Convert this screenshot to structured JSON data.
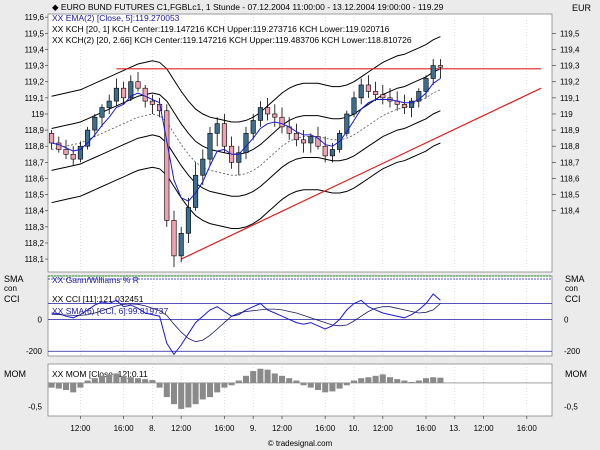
{
  "header": {
    "title": "EURO BUND FUTURES C1,FGBLc1, 1 Stunde - 07.12.2004 11:00:00 - 13.12.2004 19:00:00 - 119.29",
    "currency": "EUR",
    "ema_label": "XX EMA(2) [Close, 5]:119.270053",
    "kch1_label": "XX KCH [20, 1] KCH Center:119.147216 KCH Upper:119.273716 KCH Lower:119.020716",
    "kch2_label": "XX KCH(2) [20, 2.66] KCH Center:119.147216 KCH Upper:119.483706 KCH Lower:118.810726"
  },
  "panels": {
    "sma_label": "SMA",
    "con_label": "con",
    "cci_label": "CCI",
    "cci_legend": "XX CCI [11]:121.032451",
    "sma_legend": "XX SMA(6) [CCI, 6]:99.819737",
    "gann_legend": "XX Gann/Williams % R",
    "mom_label": "MOM",
    "mom_legend": "XX MOM [Close, 12]:0.11"
  },
  "footer": {
    "watermark": "© tradesignal.com"
  },
  "chart_data": [
    {
      "type": "candlestick",
      "title": "EURO BUND FUTURES C1,FGBLc1, 1 Stunde",
      "y_ticks": [
        118.1,
        118.2,
        118.3,
        118.4,
        118.5,
        118.6,
        118.7,
        118.8,
        118.9,
        119.0,
        119.1,
        119.2,
        119.3,
        119.4,
        119.5,
        119.6
      ],
      "y_tick_labels_left": [
        "118,1",
        "118,2",
        "118,3",
        "118,4",
        "118,5",
        "118,6",
        "118,7",
        "118,8",
        "118,9",
        "119",
        "119,1",
        "119,2",
        "119,3",
        "119,4",
        "119,5",
        "119,6"
      ],
      "y_ticks_right": [
        118.4,
        118.5,
        118.6,
        118.7,
        118.8,
        118.9,
        119.0,
        119.1,
        119.2,
        119.3,
        119.4,
        119.5
      ],
      "y_tick_labels_right": [
        "118,4",
        "118,5",
        "118,6",
        "118,7",
        "118,8",
        "118,9",
        "119",
        "119,1",
        "119,2",
        "119,3",
        "119,4",
        "119,5"
      ],
      "ylim": [
        118.02,
        119.62
      ],
      "x_ticks": [
        {
          "i": 4,
          "label": "12:00"
        },
        {
          "i": 10,
          "label": "16:00"
        },
        {
          "i": 14,
          "label": "8."
        },
        {
          "i": 18,
          "label": "12:00"
        },
        {
          "i": 24,
          "label": "16:00"
        },
        {
          "i": 28,
          "label": "9."
        },
        {
          "i": 32,
          "label": "12:00"
        },
        {
          "i": 38,
          "label": "16:00"
        },
        {
          "i": 42,
          "label": "10."
        },
        {
          "i": 46,
          "label": "12:00"
        },
        {
          "i": 52,
          "label": "16:00"
        },
        {
          "i": 56,
          "label": "13."
        },
        {
          "i": 60,
          "label": "12:00"
        },
        {
          "i": 66,
          "label": "16:00"
        }
      ],
      "candles": [
        [
          118.88,
          118.9,
          118.78,
          118.82
        ],
        [
          118.82,
          118.86,
          118.76,
          118.78
        ],
        [
          118.78,
          118.84,
          118.72,
          118.75
        ],
        [
          118.75,
          118.8,
          118.68,
          118.72
        ],
        [
          118.72,
          118.83,
          118.7,
          118.8
        ],
        [
          118.8,
          118.92,
          118.78,
          118.9
        ],
        [
          118.9,
          119.0,
          118.86,
          118.98
        ],
        [
          118.98,
          119.06,
          118.92,
          119.04
        ],
        [
          119.04,
          119.12,
          119.0,
          119.08
        ],
        [
          119.08,
          119.22,
          119.05,
          119.16
        ],
        [
          119.16,
          119.2,
          119.06,
          119.1
        ],
        [
          119.1,
          119.24,
          119.08,
          119.2
        ],
        [
          119.2,
          119.26,
          119.14,
          119.16
        ],
        [
          119.16,
          119.18,
          119.04,
          119.08
        ],
        [
          119.08,
          119.12,
          119.0,
          119.06
        ],
        [
          119.06,
          119.1,
          118.98,
          119.02
        ],
        [
          119.02,
          119.06,
          118.3,
          118.34
        ],
        [
          118.34,
          118.4,
          118.05,
          118.12
        ],
        [
          118.12,
          118.3,
          118.08,
          118.26
        ],
        [
          118.26,
          118.48,
          118.2,
          118.42
        ],
        [
          118.42,
          118.7,
          118.4,
          118.62
        ],
        [
          118.62,
          118.78,
          118.56,
          118.72
        ],
        [
          118.72,
          118.92,
          118.68,
          118.88
        ],
        [
          118.88,
          118.98,
          118.8,
          118.94
        ],
        [
          118.94,
          119.0,
          118.76,
          118.8
        ],
        [
          118.8,
          118.86,
          118.66,
          118.7
        ],
        [
          118.7,
          118.8,
          118.62,
          118.76
        ],
        [
          118.76,
          118.92,
          118.72,
          118.88
        ],
        [
          118.88,
          119.0,
          118.84,
          118.96
        ],
        [
          118.96,
          119.08,
          118.92,
          119.04
        ],
        [
          119.04,
          119.1,
          118.96,
          119.0
        ],
        [
          119.0,
          119.06,
          118.92,
          118.98
        ],
        [
          118.98,
          119.04,
          118.88,
          118.92
        ],
        [
          118.92,
          118.98,
          118.84,
          118.88
        ],
        [
          118.88,
          118.94,
          118.8,
          118.84
        ],
        [
          118.84,
          118.9,
          118.76,
          118.82
        ],
        [
          118.82,
          118.88,
          118.76,
          118.86
        ],
        [
          118.86,
          118.92,
          118.78,
          118.8
        ],
        [
          118.8,
          118.86,
          118.7,
          118.74
        ],
        [
          118.74,
          118.82,
          118.7,
          118.78
        ],
        [
          118.78,
          118.9,
          118.76,
          118.88
        ],
        [
          118.88,
          119.02,
          118.86,
          119.0
        ],
        [
          119.0,
          119.14,
          118.98,
          119.1
        ],
        [
          119.1,
          119.22,
          119.06,
          119.18
        ],
        [
          119.18,
          119.24,
          119.1,
          119.14
        ],
        [
          119.14,
          119.2,
          119.08,
          119.12
        ],
        [
          119.12,
          119.18,
          119.06,
          119.1
        ],
        [
          119.1,
          119.16,
          119.04,
          119.08
        ],
        [
          119.08,
          119.14,
          119.02,
          119.06
        ],
        [
          119.06,
          119.12,
          119.0,
          119.04
        ],
        [
          119.04,
          119.1,
          118.98,
          119.08
        ],
        [
          119.08,
          119.16,
          119.04,
          119.14
        ],
        [
          119.14,
          119.24,
          119.1,
          119.22
        ],
        [
          119.22,
          119.34,
          119.18,
          119.3
        ],
        [
          119.3,
          119.34,
          119.22,
          119.29
        ]
      ],
      "ema": [
        118.82,
        118.81,
        118.79,
        118.77,
        118.78,
        118.82,
        118.87,
        118.93,
        118.98,
        119.04,
        119.06,
        119.11,
        119.13,
        119.11,
        119.09,
        119.07,
        118.83,
        118.59,
        118.48,
        118.46,
        118.51,
        118.58,
        118.68,
        118.77,
        118.78,
        118.75,
        118.75,
        118.8,
        118.85,
        118.91,
        118.94,
        118.95,
        118.94,
        118.92,
        118.89,
        118.87,
        118.87,
        118.85,
        118.81,
        118.8,
        118.83,
        118.89,
        118.96,
        119.03,
        119.07,
        119.09,
        119.09,
        119.09,
        119.08,
        119.07,
        119.07,
        119.09,
        119.13,
        119.19,
        119.22
      ],
      "kch_center": [
        118.78,
        118.79,
        118.8,
        118.81,
        118.82,
        118.84,
        118.86,
        118.88,
        118.9,
        118.92,
        118.94,
        118.96,
        118.98,
        118.99,
        119.0,
        118.99,
        118.95,
        118.88,
        118.81,
        118.75,
        118.7,
        118.67,
        118.65,
        118.64,
        118.63,
        118.62,
        118.62,
        118.63,
        118.65,
        118.68,
        118.72,
        118.76,
        118.8,
        118.83,
        118.85,
        118.86,
        118.86,
        118.86,
        118.85,
        118.84,
        118.84,
        118.85,
        118.87,
        118.9,
        118.93,
        118.96,
        118.99,
        119.01,
        119.03,
        119.04,
        119.06,
        119.08,
        119.1,
        119.13,
        119.15
      ],
      "kch_band_offset": 0.13,
      "kch2_band_offset": 0.33,
      "resistance_line": {
        "from_i": 9,
        "to_i": 68,
        "y": 119.28
      },
      "trend_line": {
        "from_i": 18,
        "from_y": 118.1,
        "to_i": 68,
        "to_y": 119.16
      },
      "cci": {
        "y_ticks": [
          0,
          -200
        ],
        "y_tick_labels": [
          "0",
          "-200"
        ],
        "ylim": [
          -230,
          210
        ],
        "values": [
          40,
          35,
          20,
          10,
          30,
          60,
          90,
          110,
          100,
          120,
          80,
          90,
          70,
          40,
          30,
          20,
          -150,
          -220,
          -160,
          -90,
          -20,
          20,
          60,
          80,
          50,
          20,
          30,
          60,
          80,
          100,
          60,
          40,
          20,
          0,
          -20,
          -30,
          -20,
          -40,
          -60,
          -40,
          0,
          60,
          100,
          120,
          80,
          60,
          40,
          30,
          20,
          10,
          30,
          60,
          100,
          160,
          121
        ],
        "sma": [
          30,
          30,
          28,
          25,
          25,
          30,
          40,
          55,
          70,
          85,
          95,
          98,
          95,
          85,
          70,
          55,
          25,
          -30,
          -80,
          -120,
          -140,
          -130,
          -100,
          -60,
          -20,
          20,
          40,
          50,
          55,
          60,
          65,
          65,
          60,
          50,
          40,
          25,
          10,
          -5,
          -20,
          -35,
          -40,
          -35,
          -10,
          20,
          50,
          70,
          80,
          80,
          70,
          60,
          50,
          40,
          45,
          60,
          100
        ]
      },
      "mom": {
        "y_ticks": [
          -0.5
        ],
        "y_tick_labels": [
          "-0,5"
        ],
        "ylim": [
          -0.7,
          0.4
        ],
        "values": [
          -0.1,
          -0.12,
          -0.15,
          -0.2,
          -0.1,
          0.05,
          0.1,
          0.15,
          0.18,
          0.2,
          0.15,
          0.12,
          0.1,
          0.08,
          0.06,
          -0.1,
          -0.3,
          -0.45,
          -0.55,
          -0.52,
          -0.45,
          -0.35,
          -0.3,
          -0.2,
          -0.1,
          -0.05,
          0.05,
          0.15,
          0.25,
          0.3,
          0.28,
          0.2,
          0.15,
          0.1,
          0.05,
          -0.05,
          -0.1,
          -0.15,
          -0.2,
          -0.18,
          -0.12,
          -0.05,
          0.05,
          0.1,
          0.12,
          0.15,
          0.18,
          0.12,
          0.08,
          0.05,
          0.02,
          0.05,
          0.1,
          0.12,
          0.11
        ]
      }
    }
  ]
}
